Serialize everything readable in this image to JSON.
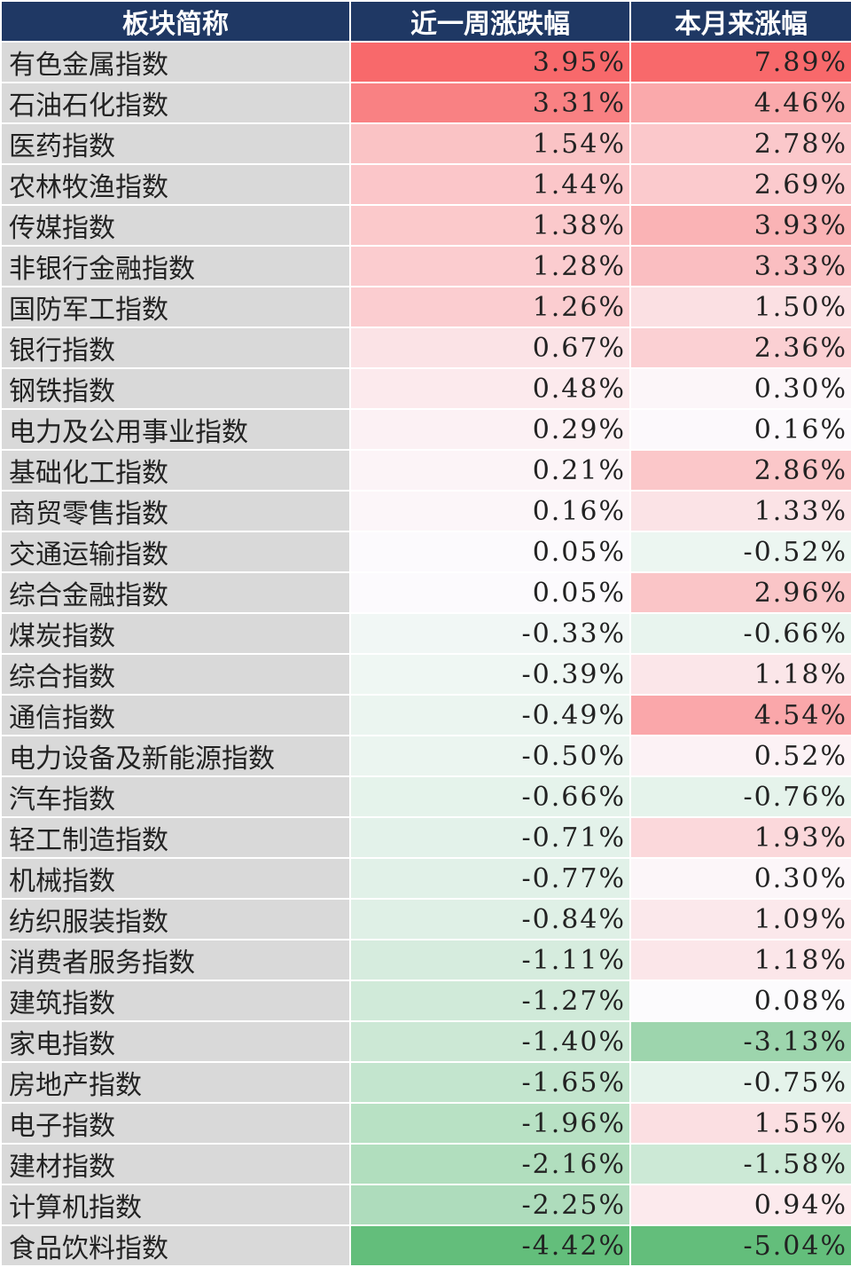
{
  "table": {
    "headers": [
      "板块简称",
      "近一周涨跌幅",
      "本月来涨幅"
    ],
    "colors": {
      "header_bg": "#1f3864",
      "name_bg": "#d9d9d9",
      "positive_max": "#f8696b",
      "negative_max": "#63be7b",
      "neutral": "#fcfcff"
    },
    "rows": [
      {
        "name": "有色金属指数",
        "week": "3.95%",
        "month": "7.89%",
        "week_value": 3.95,
        "month_value": 7.89
      },
      {
        "name": "石油石化指数",
        "week": "3.31%",
        "month": "4.46%",
        "week_value": 3.31,
        "month_value": 4.46
      },
      {
        "name": "医药指数",
        "week": "1.54%",
        "month": "2.78%",
        "week_value": 1.54,
        "month_value": 2.78
      },
      {
        "name": "农林牧渔指数",
        "week": "1.44%",
        "month": "2.69%",
        "week_value": 1.44,
        "month_value": 2.69
      },
      {
        "name": "传媒指数",
        "week": "1.38%",
        "month": "3.93%",
        "week_value": 1.38,
        "month_value": 3.93
      },
      {
        "name": "非银行金融指数",
        "week": "1.28%",
        "month": "3.33%",
        "week_value": 1.28,
        "month_value": 3.33
      },
      {
        "name": "国防军工指数",
        "week": "1.26%",
        "month": "1.50%",
        "week_value": 1.26,
        "month_value": 1.5
      },
      {
        "name": "银行指数",
        "week": "0.67%",
        "month": "2.36%",
        "week_value": 0.67,
        "month_value": 2.36
      },
      {
        "name": "钢铁指数",
        "week": "0.48%",
        "month": "0.30%",
        "week_value": 0.48,
        "month_value": 0.3
      },
      {
        "name": "电力及公用事业指数",
        "week": "0.29%",
        "month": "0.16%",
        "week_value": 0.29,
        "month_value": 0.16
      },
      {
        "name": "基础化工指数",
        "week": "0.21%",
        "month": "2.86%",
        "week_value": 0.21,
        "month_value": 2.86
      },
      {
        "name": "商贸零售指数",
        "week": "0.16%",
        "month": "1.33%",
        "week_value": 0.16,
        "month_value": 1.33
      },
      {
        "name": "交通运输指数",
        "week": "0.05%",
        "month": "-0.52%",
        "week_value": 0.05,
        "month_value": -0.52
      },
      {
        "name": "综合金融指数",
        "week": "0.05%",
        "month": "2.96%",
        "week_value": 0.05,
        "month_value": 2.96
      },
      {
        "name": "煤炭指数",
        "week": "-0.33%",
        "month": "-0.66%",
        "week_value": -0.33,
        "month_value": -0.66
      },
      {
        "name": "综合指数",
        "week": "-0.39%",
        "month": "1.18%",
        "week_value": -0.39,
        "month_value": 1.18
      },
      {
        "name": "通信指数",
        "week": "-0.49%",
        "month": "4.54%",
        "week_value": -0.49,
        "month_value": 4.54
      },
      {
        "name": "电力设备及新能源指数",
        "week": "-0.50%",
        "month": "0.52%",
        "week_value": -0.5,
        "month_value": 0.52
      },
      {
        "name": "汽车指数",
        "week": "-0.66%",
        "month": "-0.76%",
        "week_value": -0.66,
        "month_value": -0.76
      },
      {
        "name": "轻工制造指数",
        "week": "-0.71%",
        "month": "1.93%",
        "week_value": -0.71,
        "month_value": 1.93
      },
      {
        "name": "机械指数",
        "week": "-0.77%",
        "month": "0.30%",
        "week_value": -0.77,
        "month_value": 0.3
      },
      {
        "name": "纺织服装指数",
        "week": "-0.84%",
        "month": "1.09%",
        "week_value": -0.84,
        "month_value": 1.09
      },
      {
        "name": "消费者服务指数",
        "week": "-1.11%",
        "month": "1.18%",
        "week_value": -1.11,
        "month_value": 1.18
      },
      {
        "name": "建筑指数",
        "week": "-1.27%",
        "month": "0.08%",
        "week_value": -1.27,
        "month_value": 0.08
      },
      {
        "name": "家电指数",
        "week": "-1.40%",
        "month": "-3.13%",
        "week_value": -1.4,
        "month_value": -3.13
      },
      {
        "name": "房地产指数",
        "week": "-1.65%",
        "month": "-0.75%",
        "week_value": -1.65,
        "month_value": -0.75
      },
      {
        "name": "电子指数",
        "week": "-1.96%",
        "month": "1.55%",
        "week_value": -1.96,
        "month_value": 1.55
      },
      {
        "name": "建材指数",
        "week": "-2.16%",
        "month": "-1.58%",
        "week_value": -2.16,
        "month_value": -1.58
      },
      {
        "name": "计算机指数",
        "week": "-2.25%",
        "month": "0.94%",
        "week_value": -2.25,
        "month_value": 0.94
      },
      {
        "name": "食品饮料指数",
        "week": "-4.42%",
        "month": "-5.04%",
        "week_value": -4.42,
        "month_value": -5.04
      }
    ]
  }
}
